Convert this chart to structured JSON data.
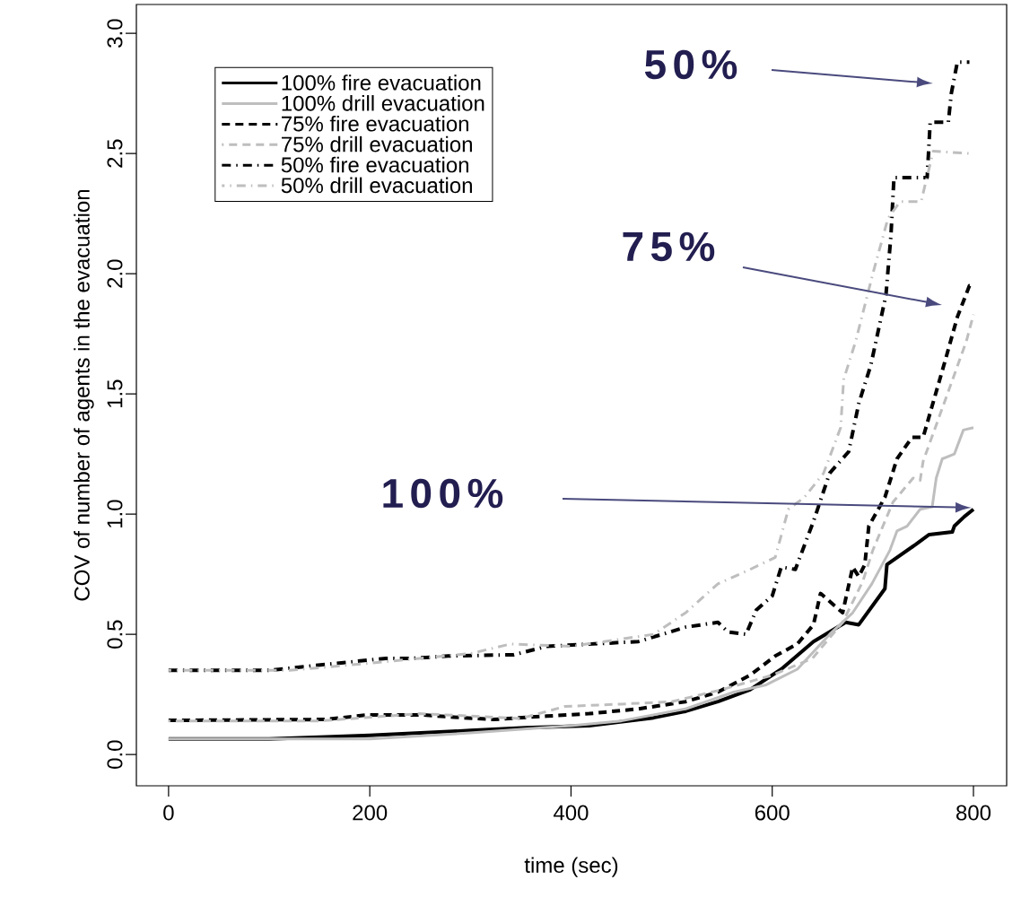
{
  "chart_data": {
    "type": "line",
    "xlabel": "time (sec)",
    "ylabel": "COV of number of agents in the evacuation",
    "xlim": [
      -32,
      833
    ],
    "ylim": [
      -0.13,
      3.12
    ],
    "xticks": [
      0,
      200,
      400,
      600,
      800
    ],
    "yticks": [
      {
        "value": 0,
        "label": "0.0"
      },
      {
        "value": 0.5,
        "label": "0.5"
      },
      {
        "value": 1,
        "label": "1.0"
      },
      {
        "value": 1.5,
        "label": "1.5"
      },
      {
        "value": 2,
        "label": "2.0"
      },
      {
        "value": 2.5,
        "label": "2.5"
      },
      {
        "value": 3,
        "label": "3.0"
      }
    ],
    "grid": false,
    "legend": "top left",
    "annotations": [
      "50%",
      "75%",
      "100%"
    ],
    "series": [
      {
        "name": "100% fire evacuation",
        "color": "#000000",
        "line_style": "solid",
        "x": [
          0,
          100,
          200,
          300,
          355,
          418,
          482,
          514,
          546,
          578,
          609,
          641,
          673,
          686,
          712,
          714,
          743,
          756,
          779,
          781,
          791,
          800
        ],
        "values": [
          0.065,
          0.065,
          0.08,
          0.1,
          0.112,
          0.12,
          0.153,
          0.18,
          0.22,
          0.27,
          0.355,
          0.47,
          0.55,
          0.54,
          0.69,
          0.79,
          0.875,
          0.915,
          0.926,
          0.95,
          0.99,
          1.02
        ]
      },
      {
        "name": "100% drill evacuation",
        "color": "#bebebe",
        "line_style": "solid",
        "x": [
          0,
          200,
          300,
          400,
          450,
          514,
          562,
          594,
          625,
          657,
          680,
          699,
          717,
          724,
          734,
          747,
          759,
          763,
          769,
          781,
          790,
          800
        ],
        "values": [
          0.065,
          0.065,
          0.09,
          0.12,
          0.14,
          0.19,
          0.26,
          0.29,
          0.355,
          0.5,
          0.59,
          0.71,
          0.85,
          0.93,
          0.95,
          1.02,
          1.03,
          1.15,
          1.23,
          1.25,
          1.35,
          1.36
        ]
      },
      {
        "name": "75% fire evacuation",
        "color": "#000000",
        "line_style": "dashed",
        "x": [
          0,
          156,
          198,
          252,
          293,
          323,
          376,
          418,
          467,
          514,
          546,
          578,
          603,
          625,
          641,
          648,
          670,
          680,
          686,
          692,
          696,
          712,
          724,
          739,
          750,
          772,
          784,
          796,
          800
        ],
        "values": [
          0.142,
          0.146,
          0.165,
          0.165,
          0.153,
          0.146,
          0.16,
          0.17,
          0.19,
          0.22,
          0.26,
          0.33,
          0.41,
          0.46,
          0.54,
          0.67,
          0.59,
          0.78,
          0.74,
          0.79,
          0.95,
          1.07,
          1.23,
          1.32,
          1.32,
          1.64,
          1.82,
          1.95,
          1.95
        ]
      },
      {
        "name": "75% drill evacuation",
        "color": "#bebebe",
        "line_style": "dashed",
        "x": [
          0,
          150,
          250,
          350,
          394,
          450,
          500,
          550,
          600,
          640,
          670,
          690,
          700,
          710,
          720,
          740,
          747,
          750,
          775,
          793,
          800
        ],
        "values": [
          0.14,
          0.14,
          0.17,
          0.15,
          0.2,
          0.21,
          0.22,
          0.27,
          0.33,
          0.4,
          0.55,
          0.72,
          0.85,
          0.95,
          1.05,
          1.15,
          1.14,
          1.22,
          1.51,
          1.72,
          1.83
        ]
      },
      {
        "name": "50% fire evacuation",
        "color": "#000000",
        "line_style": "dashdot",
        "x": [
          0,
          100,
          145,
          216,
          243,
          278,
          343,
          376,
          467,
          514,
          546,
          556,
          574,
          584,
          600,
          609,
          623,
          641,
          657,
          676,
          686,
          698,
          713,
          718,
          721,
          754,
          757,
          775,
          778,
          784,
          796
        ],
        "values": [
          0.35,
          0.35,
          0.37,
          0.4,
          0.4,
          0.41,
          0.415,
          0.45,
          0.47,
          0.53,
          0.55,
          0.51,
          0.5,
          0.6,
          0.66,
          0.78,
          0.77,
          0.97,
          1.17,
          1.26,
          1.46,
          1.62,
          1.91,
          2.16,
          2.4,
          2.4,
          2.63,
          2.63,
          2.75,
          2.88,
          2.88
        ]
      },
      {
        "name": "50% drill evacuation",
        "color": "#bebebe",
        "line_style": "dashdot",
        "x": [
          0,
          120,
          200,
          300,
          340,
          400,
          482,
          514,
          546,
          578,
          603,
          616,
          632,
          651,
          668,
          671,
          683,
          700,
          715,
          727,
          748,
          760,
          796
        ],
        "values": [
          0.35,
          0.35,
          0.38,
          0.42,
          0.46,
          0.45,
          0.5,
          0.59,
          0.71,
          0.77,
          0.82,
          1.02,
          1.07,
          1.17,
          1.36,
          1.56,
          1.72,
          2.0,
          2.23,
          2.3,
          2.3,
          2.51,
          2.5
        ]
      }
    ]
  }
}
